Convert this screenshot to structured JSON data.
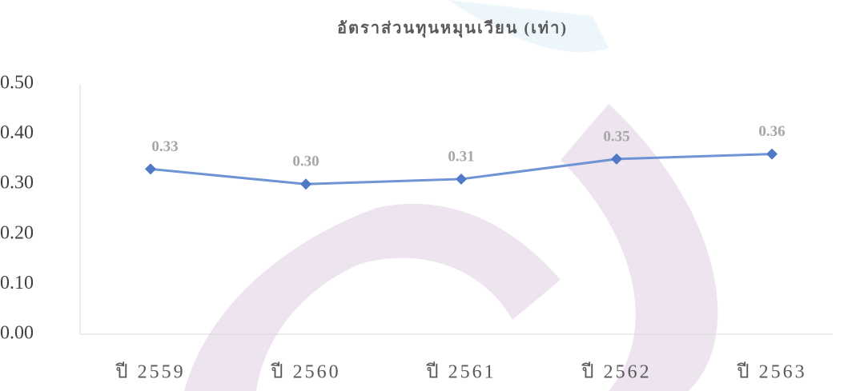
{
  "chart_data": {
    "type": "line",
    "title": "อัตราส่วนทุนหมุนเวียน (เท่า)",
    "categories": [
      "ปี 2559",
      "ปี 2560",
      "ปี 2561",
      "ปี 2562",
      "ปี 2563"
    ],
    "values": [
      0.33,
      0.3,
      0.31,
      0.35,
      0.36
    ],
    "value_labels": [
      "0.33",
      "0.30",
      "0.31",
      "0.35",
      "0.36"
    ],
    "color": "#6f94d3",
    "marker_color": "#4f79c7",
    "ylim": [
      0,
      0.5
    ],
    "yticks": [
      {
        "value": 0,
        "label": "0.00"
      },
      {
        "value": 0.1,
        "label": "0.10"
      },
      {
        "value": 0.2,
        "label": "0.20"
      },
      {
        "value": 0.3,
        "label": "0.30"
      },
      {
        "value": 0.4,
        "label": "0.40"
      },
      {
        "value": 0.5,
        "label": "0.50"
      }
    ],
    "grid": false
  }
}
